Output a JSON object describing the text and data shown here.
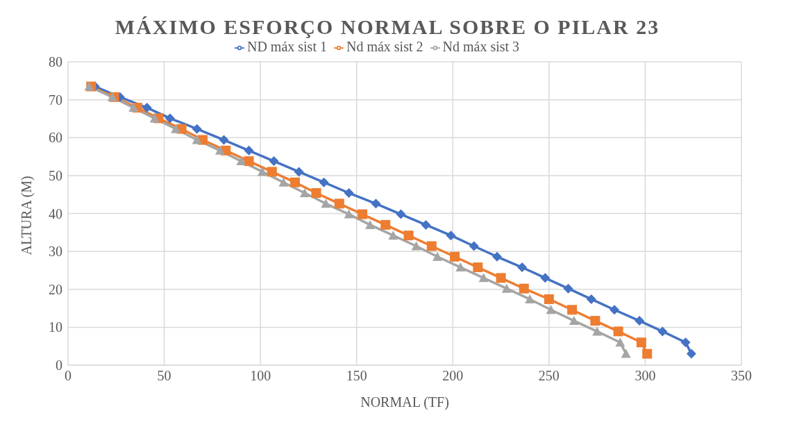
{
  "chart_data": {
    "type": "line",
    "title": "MÁXIMO ESFORÇO NORMAL SOBRE O PILAR 23",
    "xlabel": "NORMAL (TF)",
    "ylabel": "ALTURA (M)",
    "xlim": [
      0,
      350
    ],
    "xticks": [
      0,
      50,
      100,
      150,
      200,
      250,
      300,
      350
    ],
    "ylim": [
      0,
      80
    ],
    "yticks": [
      0,
      10,
      20,
      30,
      40,
      50,
      60,
      70,
      80
    ],
    "grid": true,
    "legend": "top",
    "line_style": "solid",
    "series": [
      {
        "name": "ND máx sist 1",
        "color": "#4472c4",
        "marker": "diamond",
        "x": [
          14,
          27,
          41,
          53,
          67,
          81,
          94,
          107,
          120,
          133,
          146,
          160,
          173,
          186,
          199,
          211,
          223,
          236,
          248,
          260,
          272,
          284,
          297,
          309,
          321,
          324
        ],
        "values": [
          73.5,
          70.7,
          67.9,
          65.1,
          62.3,
          59.4,
          56.6,
          53.8,
          51,
          48.2,
          45.4,
          42.6,
          39.8,
          37,
          34.2,
          31.4,
          28.6,
          25.8,
          23,
          20.2,
          17.4,
          14.6,
          11.7,
          8.9,
          6,
          3
        ]
      },
      {
        "name": "Nd máx sist 2",
        "color": "#ed7d31",
        "marker": "square",
        "x": [
          12,
          24,
          36,
          47,
          59,
          70,
          82,
          94,
          106,
          118,
          129,
          141,
          153,
          165,
          177,
          189,
          201,
          213,
          225,
          237,
          250,
          262,
          274,
          286,
          298,
          301
        ],
        "values": [
          73.5,
          70.7,
          67.9,
          65.1,
          62.3,
          59.4,
          56.6,
          53.8,
          51,
          48.2,
          45.4,
          42.6,
          39.8,
          37,
          34.2,
          31.4,
          28.6,
          25.8,
          23,
          20.2,
          17.4,
          14.6,
          11.7,
          8.9,
          6,
          3
        ]
      },
      {
        "name": "Nd máx sist 3",
        "color": "#a5a5a5",
        "marker": "triangle",
        "x": [
          11,
          23,
          34,
          45,
          56,
          67,
          79,
          90,
          101,
          112,
          123,
          134,
          146,
          157,
          169,
          181,
          192,
          204,
          216,
          228,
          240,
          251,
          263,
          275,
          287,
          290
        ],
        "values": [
          73.5,
          70.7,
          67.9,
          65.1,
          62.3,
          59.4,
          56.6,
          53.8,
          51,
          48.2,
          45.4,
          42.6,
          39.8,
          37,
          34.2,
          31.4,
          28.6,
          25.8,
          23,
          20.2,
          17.4,
          14.6,
          11.7,
          8.9,
          6,
          3
        ]
      }
    ]
  }
}
